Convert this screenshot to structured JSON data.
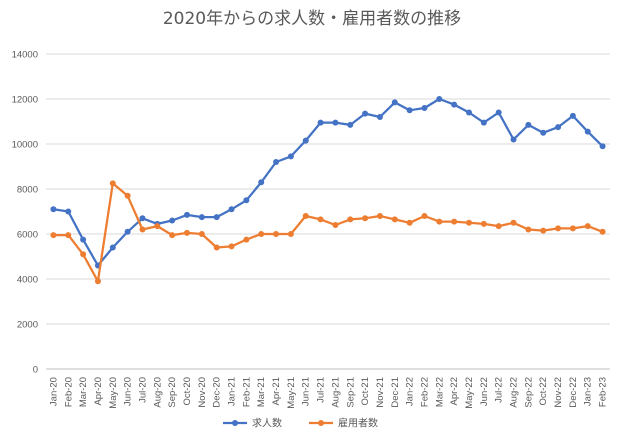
{
  "chart_data": {
    "type": "line",
    "title": "2020年からの求人数・雇用者数の推移",
    "xlabel": "",
    "ylabel": "",
    "ylim": [
      0,
      14000
    ],
    "yticks": [
      0,
      2000,
      4000,
      6000,
      8000,
      10000,
      12000,
      14000
    ],
    "grid": true,
    "legend_position": "bottom",
    "categories": [
      "Jan-20",
      "Feb-20",
      "Mar-20",
      "Apr-20",
      "May-20",
      "Jun-20",
      "Jul-20",
      "Aug-20",
      "Sep-20",
      "Oct-20",
      "Nov-20",
      "Dec-20",
      "Jan-21",
      "Feb-21",
      "Mar-21",
      "Apr-21",
      "May-21",
      "Jun-21",
      "Jul-21",
      "Aug-21",
      "Sep-21",
      "Oct-21",
      "Nov-21",
      "Dec-21",
      "Jan-22",
      "Feb-22",
      "Mar-22",
      "Apr-22",
      "May-22",
      "Jun-22",
      "Jul-22",
      "Aug-22",
      "Sep-22",
      "Oct-22",
      "Nov-22",
      "Dec-22",
      "Jan-23",
      "Feb-23"
    ],
    "series": [
      {
        "name": "求人数",
        "color": "#4472C4",
        "values": [
          7100,
          7000,
          5750,
          4600,
          5400,
          6100,
          6700,
          6450,
          6600,
          6850,
          6750,
          6750,
          7100,
          7500,
          8300,
          9200,
          9450,
          10150,
          10950,
          10950,
          10850,
          11350,
          11200,
          11850,
          11500,
          11600,
          12000,
          11750,
          11400,
          10950,
          11400,
          10200,
          10850,
          10500,
          10750,
          11250,
          10550,
          9900
        ]
      },
      {
        "name": "雇用者数",
        "color": "#ED7D31",
        "values": [
          5950,
          5950,
          5100,
          3900,
          8250,
          7700,
          6200,
          6350,
          5950,
          6050,
          6000,
          5400,
          5450,
          5750,
          6000,
          6000,
          6000,
          6800,
          6650,
          6400,
          6650,
          6700,
          6800,
          6650,
          6500,
          6800,
          6550,
          6550,
          6500,
          6450,
          6350,
          6500,
          6200,
          6150,
          6250,
          6250,
          6350,
          6100
        ]
      }
    ]
  }
}
